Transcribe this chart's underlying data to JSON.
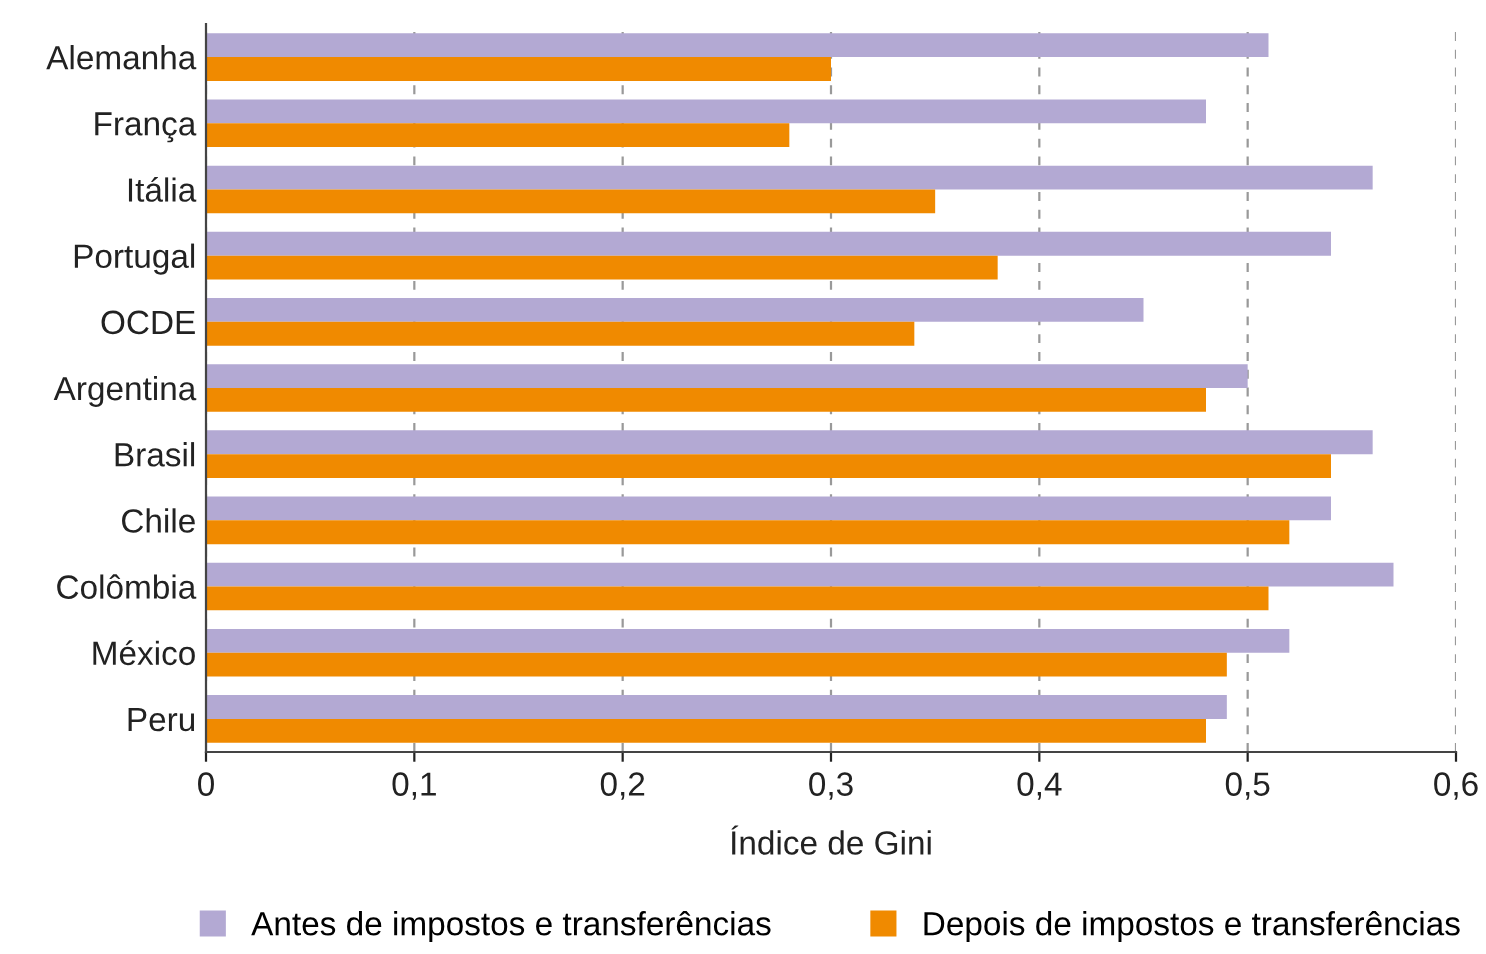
{
  "chart_data": {
    "type": "bar",
    "orientation": "horizontal",
    "xlabel": "Índice de Gini",
    "categories": [
      "Alemanha",
      "França",
      "Itália",
      "Portugal",
      "OCDE",
      "Argentina",
      "Brasil",
      "Chile",
      "Colômbia",
      "México",
      "Peru"
    ],
    "series": [
      {
        "name": "Antes de impostos e transferências",
        "color": "#b3a9d3",
        "values": [
          0.51,
          0.48,
          0.56,
          0.54,
          0.45,
          0.5,
          0.56,
          0.54,
          0.57,
          0.52,
          0.49
        ]
      },
      {
        "name": "Depois de impostos e transferências",
        "color": "#f08a00",
        "values": [
          0.3,
          0.28,
          0.35,
          0.38,
          0.34,
          0.48,
          0.54,
          0.52,
          0.51,
          0.49,
          0.48
        ]
      }
    ],
    "xlim": [
      0,
      0.6
    ],
    "xticks": [
      {
        "value": 0,
        "label": "0"
      },
      {
        "value": 0.1,
        "label": "0,1"
      },
      {
        "value": 0.2,
        "label": "0,2"
      },
      {
        "value": 0.3,
        "label": "0,3"
      },
      {
        "value": 0.4,
        "label": "0,4"
      },
      {
        "value": 0.5,
        "label": "0,5"
      },
      {
        "value": 0.6,
        "label": "0,6"
      }
    ],
    "grid": "x",
    "legend": "bottom"
  }
}
